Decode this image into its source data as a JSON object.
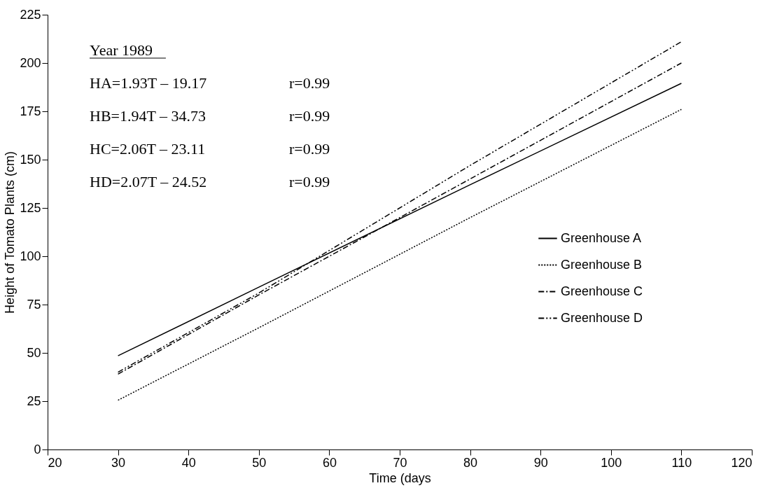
{
  "chart_data": {
    "type": "line",
    "xlabel": "Time (days",
    "ylabel": "Height of Tomato Plants (cm)",
    "x": [
      30,
      50,
      80,
      110
    ],
    "series": [
      {
        "name": "Greenhouse A",
        "color": "#000000",
        "line_style": "solid",
        "values": [
          48.5,
          84,
          137,
          189.5
        ]
      },
      {
        "name": "Greenhouse B",
        "color": "#000000",
        "line_style": "dotted",
        "values": [
          25.5,
          63,
          120,
          176
        ]
      },
      {
        "name": "Greenhouse C",
        "color": "#000000",
        "line_style": "dashed",
        "values": [
          39,
          80,
          140,
          200
        ]
      },
      {
        "name": "Greenhouse D",
        "color": "#000000",
        "line_style": "dashed",
        "values": [
          40,
          81,
          147,
          211
        ]
      }
    ],
    "xlim": [
      20,
      120
    ],
    "xticks": [
      20,
      30,
      40,
      50,
      60,
      70,
      80,
      90,
      100,
      110,
      120
    ],
    "ylim": [
      0,
      225
    ],
    "yticks": [
      0,
      25,
      50,
      75,
      100,
      125,
      150,
      175,
      200,
      225
    ],
    "grid": false,
    "legend": "bottom right",
    "marker": "none",
    "annotations": [
      "Year 1989",
      "HA=1.93T – 19.17",
      "r=0.99",
      "HB=1.94T – 34.73",
      "r=0.99",
      "HC=2.06T – 23.11",
      "r=0.99",
      "HD=2.07T – 24.52",
      "r=0.99"
    ]
  }
}
